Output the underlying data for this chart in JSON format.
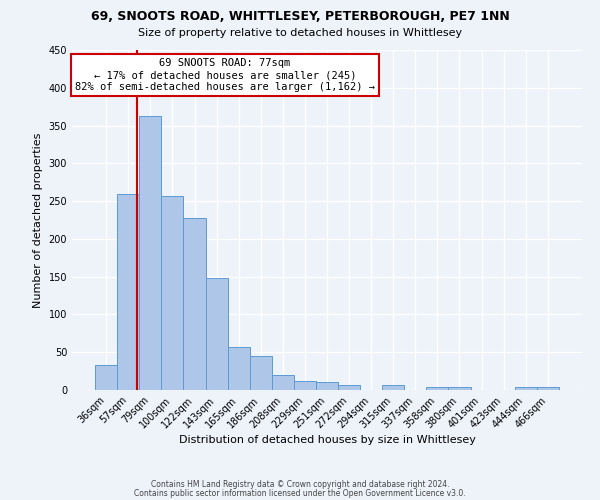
{
  "title": "69, SNOOTS ROAD, WHITTLESEY, PETERBOROUGH, PE7 1NN",
  "subtitle": "Size of property relative to detached houses in Whittlesey",
  "xlabel": "Distribution of detached houses by size in Whittlesey",
  "ylabel": "Number of detached properties",
  "bar_labels": [
    "36sqm",
    "57sqm",
    "79sqm",
    "100sqm",
    "122sqm",
    "143sqm",
    "165sqm",
    "186sqm",
    "208sqm",
    "229sqm",
    "251sqm",
    "272sqm",
    "294sqm",
    "315sqm",
    "337sqm",
    "358sqm",
    "380sqm",
    "401sqm",
    "423sqm",
    "444sqm",
    "466sqm"
  ],
  "bar_values": [
    33,
    260,
    363,
    257,
    228,
    148,
    57,
    45,
    20,
    12,
    11,
    6,
    0,
    6,
    0,
    4,
    4,
    0,
    0,
    4,
    4
  ],
  "bar_color": "#aec6e8",
  "bar_edge_color": "#5b9bd5",
  "property_line_label": "69 SNOOTS ROAD: 77sqm",
  "annotation_line1": "← 17% of detached houses are smaller (245)",
  "annotation_line2": "82% of semi-detached houses are larger (1,162) →",
  "annotation_box_color": "#ffffff",
  "annotation_box_edge": "#cc0000",
  "vline_color": "#cc0000",
  "ylim": [
    0,
    450
  ],
  "yticks": [
    0,
    50,
    100,
    150,
    200,
    250,
    300,
    350,
    400,
    450
  ],
  "bg_color": "#eef2f9",
  "grid_color": "#ffffff",
  "footer1": "Contains HM Land Registry data © Crown copyright and database right 2024.",
  "footer2": "Contains public sector information licensed under the Open Government Licence v3.0."
}
